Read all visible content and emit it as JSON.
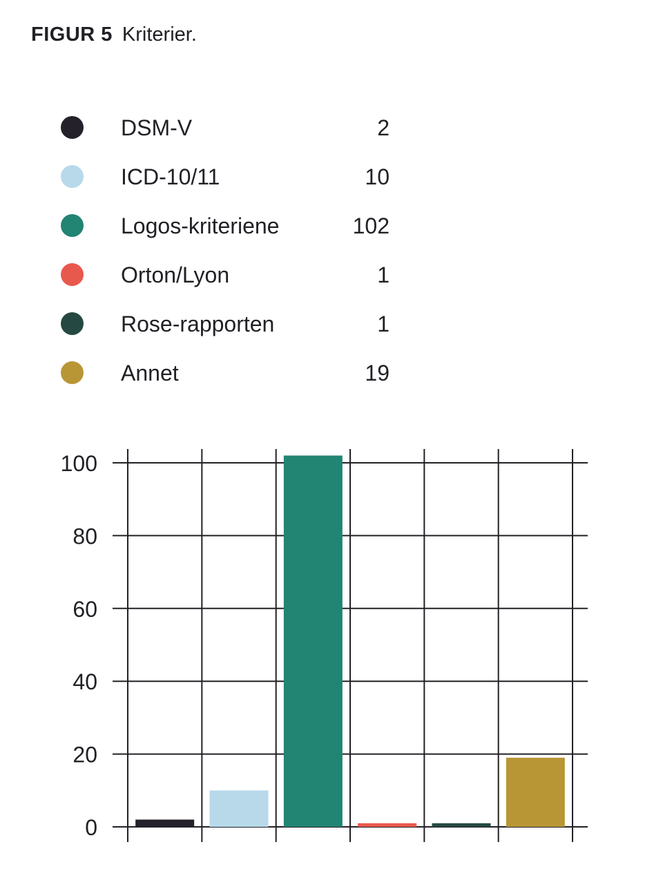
{
  "figure": {
    "label": "FIGUR 5",
    "caption": "Kriterier."
  },
  "chart_data": {
    "type": "bar",
    "categories": [
      "DSM-V",
      "ICD-10/11",
      "Logos-kriteriene",
      "Orton/Lyon",
      "Rose-rapporten",
      "Annet"
    ],
    "values": [
      2,
      10,
      102,
      1,
      1,
      19
    ],
    "colors": [
      "#25212a",
      "#b7d9ea",
      "#228472",
      "#e8594d",
      "#254942",
      "#b89636"
    ],
    "ylim": [
      0,
      100
    ],
    "yticks": [
      0,
      20,
      40,
      60,
      80,
      100
    ],
    "grid": true,
    "legend_position": "top"
  },
  "legend": [
    {
      "name": "DSM-V",
      "value": "2",
      "color": "#25212a"
    },
    {
      "name": "ICD-10/11",
      "value": "10",
      "color": "#b7d9ea"
    },
    {
      "name": "Logos-kriteriene",
      "value": "102",
      "color": "#228472"
    },
    {
      "name": "Orton/Lyon",
      "value": "1",
      "color": "#e8594d"
    },
    {
      "name": "Rose-rapporten",
      "value": "1",
      "color": "#254942"
    },
    {
      "name": "Annet",
      "value": "19",
      "color": "#b89636"
    }
  ]
}
